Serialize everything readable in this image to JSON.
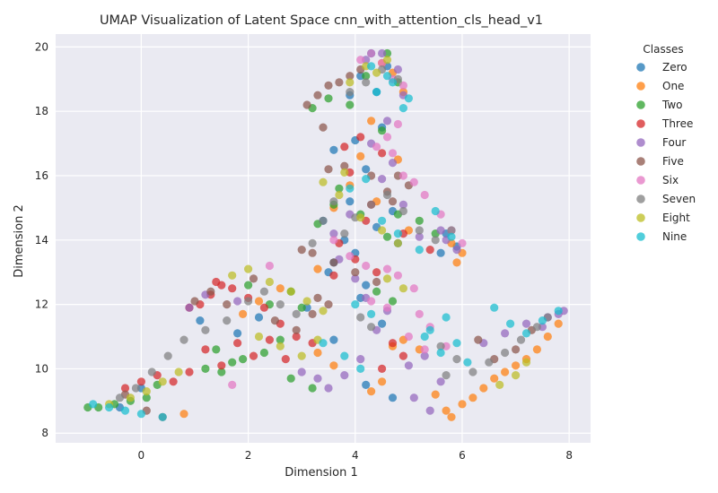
{
  "chart_data": {
    "type": "scatter",
    "title": "UMAP Visualization of Latent Space cnn_with_attention_cls_head_v1",
    "xlabel": "Dimension 1",
    "ylabel": "Dimension 2",
    "xlim": [
      -1.6,
      8.4
    ],
    "ylim": [
      7.7,
      20.4
    ],
    "x_ticks": [
      0,
      2,
      4,
      6,
      8
    ],
    "y_ticks": [
      8,
      10,
      12,
      14,
      16,
      18,
      20
    ],
    "grid": true,
    "style": "seaborn-darkgrid",
    "legend": {
      "title": "Classes",
      "placement": "outside-right"
    },
    "series": [
      {
        "name": "Zero",
        "color": "#1f77b4",
        "x": [
          4.3,
          4.6,
          4.1,
          3.9,
          4.4,
          4.5,
          4.0,
          3.6,
          4.2,
          3.9,
          4.7,
          4.4,
          3.4,
          3.8,
          4.0,
          3.6,
          4.8,
          4.2,
          5.7,
          5.9,
          5.6,
          1.1,
          1.8,
          2.2,
          3.1,
          3.5,
          4.1,
          4.5,
          3.6,
          4.7,
          0.0,
          -0.4,
          4.2
        ],
        "y": [
          19.8,
          19.4,
          19.1,
          18.5,
          18.6,
          17.5,
          17.1,
          16.8,
          16.2,
          15.2,
          14.9,
          14.4,
          14.6,
          14.0,
          13.6,
          13.3,
          13.9,
          12.6,
          14.2,
          13.8,
          13.6,
          11.5,
          11.1,
          11.6,
          11.9,
          13.0,
          12.2,
          11.4,
          10.9,
          9.1,
          9.4,
          8.8,
          9.5
        ]
      },
      {
        "name": "One",
        "color": "#ff7f0e",
        "x": [
          4.9,
          4.7,
          4.5,
          4.3,
          4.1,
          3.9,
          3.6,
          4.4,
          4.8,
          5.0,
          3.3,
          5.9,
          6.0,
          5.8,
          4.7,
          4.9,
          5.2,
          5.5,
          5.7,
          5.8,
          6.0,
          6.2,
          6.4,
          6.6,
          6.8,
          7.0,
          7.2,
          7.4,
          7.6,
          7.8,
          4.5,
          4.3,
          3.3,
          3.6,
          0.8,
          2.2,
          1.9,
          2.6
        ],
        "y": [
          18.6,
          19.2,
          19.5,
          17.7,
          16.6,
          15.7,
          15.0,
          15.2,
          16.5,
          14.3,
          13.1,
          13.3,
          13.6,
          13.9,
          10.7,
          10.9,
          10.6,
          9.2,
          8.7,
          8.5,
          8.9,
          9.1,
          9.4,
          9.7,
          9.9,
          10.1,
          10.3,
          10.6,
          11.0,
          11.4,
          9.6,
          9.3,
          10.5,
          10.1,
          8.6,
          12.1,
          11.7,
          12.5
        ]
      },
      {
        "name": "Two",
        "color": "#2ca02c",
        "x": [
          3.2,
          3.5,
          3.9,
          4.2,
          4.6,
          4.5,
          4.8,
          3.7,
          3.6,
          3.3,
          4.1,
          4.6,
          4.8,
          5.2,
          5.5,
          2.0,
          2.4,
          2.8,
          3.0,
          2.3,
          1.7,
          1.5,
          1.2,
          1.4,
          1.9,
          2.6,
          0.3,
          0.1,
          -0.2,
          -0.5,
          -0.8,
          -1.0,
          3.2,
          2.8,
          4.4,
          4.7
        ],
        "y": [
          18.1,
          18.4,
          18.2,
          19.1,
          19.8,
          17.4,
          18.9,
          15.6,
          15.1,
          14.5,
          14.8,
          14.1,
          14.8,
          14.6,
          14.2,
          12.6,
          12.0,
          12.4,
          11.9,
          10.5,
          10.2,
          9.9,
          10.0,
          10.6,
          10.3,
          10.9,
          9.5,
          9.1,
          9.0,
          8.9,
          8.8,
          8.8,
          9.4,
          9.7,
          12.4,
          12.1
        ]
      },
      {
        "name": "Three",
        "color": "#d62728",
        "x": [
          3.8,
          4.1,
          4.3,
          3.9,
          4.5,
          4.2,
          3.7,
          4.0,
          4.4,
          3.6,
          4.9,
          5.4,
          1.5,
          1.3,
          1.1,
          0.9,
          1.4,
          1.7,
          2.0,
          2.3,
          2.6,
          2.9,
          3.2,
          1.2,
          1.5,
          1.8,
          2.1,
          2.4,
          2.7,
          0.0,
          0.3,
          0.6,
          0.9,
          -0.3,
          4.9,
          4.7,
          4.5
        ],
        "y": [
          16.9,
          17.2,
          15.1,
          16.1,
          16.7,
          14.6,
          13.9,
          13.4,
          13.0,
          12.9,
          14.2,
          13.7,
          12.6,
          12.3,
          12.0,
          11.9,
          12.7,
          12.5,
          12.2,
          11.9,
          11.4,
          11.0,
          10.8,
          10.6,
          10.1,
          10.8,
          10.4,
          10.9,
          10.3,
          9.6,
          9.8,
          9.6,
          9.9,
          9.4,
          10.4,
          10.8,
          10.0
        ]
      },
      {
        "name": "Four",
        "color": "#9467bd",
        "x": [
          4.2,
          4.5,
          4.8,
          4.9,
          4.6,
          4.3,
          4.7,
          4.5,
          4.9,
          3.6,
          3.9,
          5.2,
          5.6,
          5.7,
          5.9,
          3.7,
          4.0,
          4.2,
          4.6,
          4.4,
          4.1,
          3.8,
          3.5,
          3.3,
          3.0,
          5.0,
          5.3,
          5.6,
          6.4,
          6.8,
          7.2,
          7.5,
          7.6,
          7.8,
          7.9,
          1.8,
          0.9,
          1.2,
          5.1,
          5.4
        ],
        "y": [
          19.6,
          19.8,
          19.3,
          18.5,
          17.7,
          17.0,
          16.4,
          15.9,
          15.1,
          14.2,
          14.8,
          14.1,
          14.3,
          14.0,
          13.7,
          13.4,
          12.8,
          12.2,
          11.8,
          11.2,
          10.3,
          9.8,
          9.4,
          9.7,
          9.9,
          10.1,
          10.4,
          9.6,
          10.8,
          11.1,
          11.4,
          11.3,
          11.6,
          11.7,
          11.8,
          12.1,
          11.9,
          12.3,
          9.1,
          8.7
        ]
      },
      {
        "name": "Five",
        "color": "#8c564b",
        "x": [
          3.1,
          3.3,
          3.5,
          3.7,
          3.9,
          4.1,
          3.4,
          3.8,
          4.3,
          4.6,
          3.5,
          3.2,
          4.0,
          4.4,
          4.7,
          3.6,
          3.0,
          3.3,
          1.0,
          1.3,
          1.6,
          2.1,
          2.5,
          2.9,
          3.2,
          3.5,
          6.3,
          6.6,
          7.0,
          7.3,
          -0.3,
          0.1,
          0.4,
          4.8,
          5.0
        ],
        "y": [
          18.2,
          18.5,
          18.8,
          18.9,
          19.1,
          19.3,
          17.5,
          16.3,
          16.0,
          15.5,
          16.2,
          13.6,
          13.0,
          12.7,
          15.2,
          13.3,
          13.7,
          12.2,
          12.1,
          12.4,
          12.0,
          12.8,
          11.5,
          11.2,
          11.7,
          12.0,
          10.9,
          10.3,
          10.6,
          11.2,
          9.2,
          8.7,
          8.5,
          16.0,
          15.7
        ]
      },
      {
        "name": "Six",
        "color": "#e377c2",
        "x": [
          4.1,
          4.3,
          4.5,
          4.7,
          4.9,
          4.8,
          4.6,
          4.4,
          4.7,
          4.9,
          5.1,
          5.3,
          3.6,
          3.9,
          4.2,
          4.6,
          4.8,
          5.1,
          5.6,
          5.8,
          6.0,
          5.2,
          5.4,
          5.0,
          5.3,
          5.7,
          2.4,
          1.7,
          4.3,
          4.6
        ],
        "y": [
          19.6,
          19.8,
          19.5,
          19.0,
          18.8,
          17.6,
          17.2,
          16.9,
          16.7,
          16.0,
          15.8,
          15.4,
          14.0,
          13.5,
          13.2,
          13.1,
          12.9,
          12.5,
          14.8,
          14.3,
          13.9,
          11.7,
          11.3,
          11.0,
          10.6,
          10.7,
          13.2,
          9.5,
          12.1,
          11.9
        ]
      },
      {
        "name": "Seven",
        "color": "#7f7f7f",
        "x": [
          3.9,
          4.2,
          4.5,
          4.8,
          3.6,
          3.4,
          3.2,
          3.8,
          4.0,
          4.3,
          4.6,
          4.9,
          5.2,
          5.5,
          5.8,
          5.6,
          5.9,
          5.7,
          6.2,
          6.5,
          6.8,
          7.1,
          7.4,
          7.6,
          2.0,
          2.3,
          2.6,
          2.9,
          1.6,
          1.2,
          0.8,
          0.5,
          0.2,
          -0.1,
          -0.4,
          4.1,
          4.3
        ],
        "y": [
          18.6,
          18.9,
          19.3,
          19.0,
          15.2,
          14.6,
          13.9,
          14.2,
          14.7,
          15.1,
          15.4,
          14.9,
          14.3,
          14.0,
          14.3,
          10.7,
          10.3,
          9.8,
          9.9,
          10.2,
          10.5,
          10.9,
          11.3,
          11.6,
          12.1,
          12.4,
          12.0,
          11.7,
          11.5,
          11.2,
          10.9,
          10.4,
          9.9,
          9.4,
          9.1,
          11.6,
          11.3
        ]
      },
      {
        "name": "Eight",
        "color": "#bcbd22",
        "x": [
          3.9,
          4.2,
          4.6,
          4.4,
          3.8,
          3.4,
          3.7,
          4.1,
          4.5,
          4.8,
          2.0,
          2.4,
          2.8,
          3.1,
          3.4,
          1.7,
          2.2,
          2.6,
          3.0,
          3.3,
          0.7,
          0.4,
          0.1,
          -0.2,
          -0.6,
          7.2,
          7.0,
          6.7,
          4.6,
          4.9
        ],
        "y": [
          18.9,
          19.4,
          19.6,
          19.2,
          16.1,
          15.8,
          15.4,
          14.7,
          14.3,
          13.9,
          13.1,
          12.7,
          12.4,
          12.1,
          11.8,
          12.9,
          11.0,
          10.7,
          10.4,
          10.9,
          9.9,
          9.6,
          9.3,
          9.1,
          8.9,
          10.2,
          9.8,
          9.5,
          12.8,
          12.5
        ]
      },
      {
        "name": "Nine",
        "color": "#17becf",
        "x": [
          4.4,
          4.7,
          5.0,
          4.9,
          4.6,
          4.3,
          3.9,
          4.2,
          4.5,
          4.8,
          5.2,
          5.5,
          5.8,
          5.4,
          5.7,
          5.3,
          5.6,
          5.9,
          6.1,
          6.6,
          6.9,
          7.2,
          7.5,
          7.8,
          3.4,
          3.8,
          4.1,
          -0.9,
          -0.6,
          -0.3,
          0.0,
          0.4,
          4.0,
          4.3
        ],
        "y": [
          18.6,
          18.9,
          18.4,
          18.1,
          19.1,
          19.4,
          15.6,
          15.9,
          14.6,
          14.2,
          13.7,
          14.9,
          14.1,
          11.2,
          11.6,
          11.0,
          10.5,
          10.8,
          10.2,
          11.9,
          11.4,
          11.1,
          11.5,
          11.8,
          10.8,
          10.4,
          10.0,
          8.9,
          8.8,
          8.7,
          8.6,
          8.5,
          12.0,
          11.7
        ]
      }
    ]
  }
}
